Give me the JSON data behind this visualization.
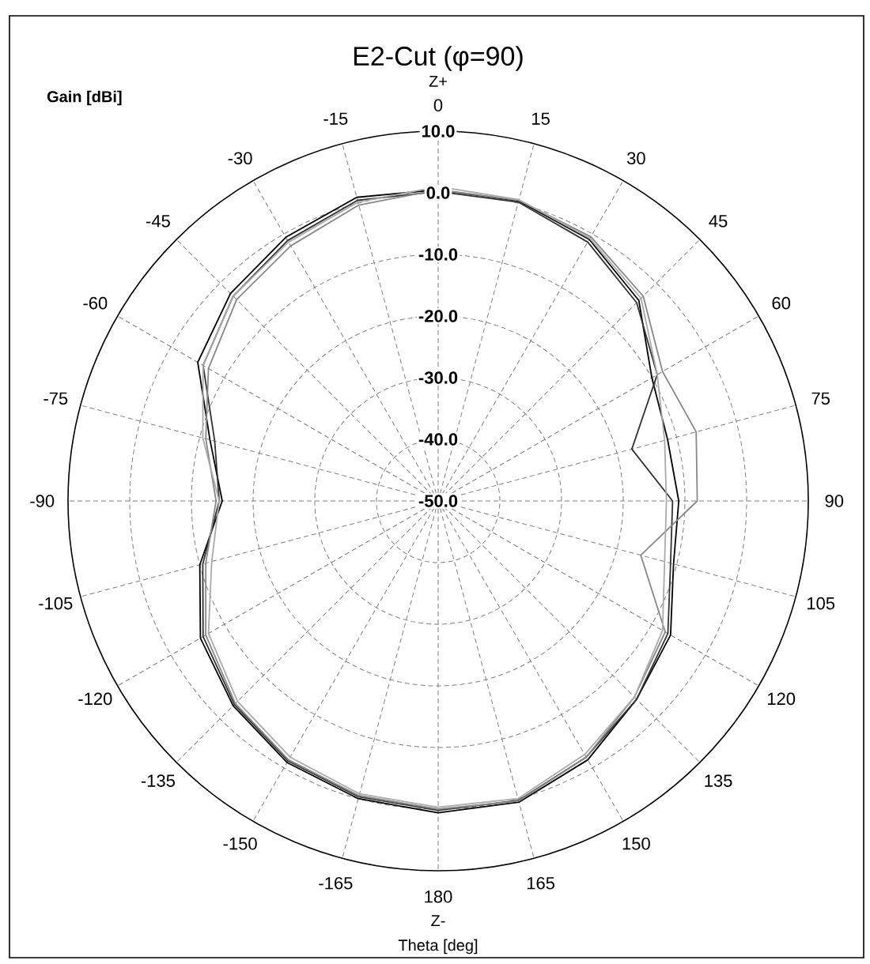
{
  "chart_data": {
    "type": "radar",
    "title": "E2-Cut (φ=90)",
    "xlabel": "Theta [deg]",
    "ylabel": "Gain [dBi]",
    "annotations": [
      "Z+",
      "Z-"
    ],
    "categories": [
      "0",
      "15",
      "30",
      "45",
      "60",
      "75",
      "90",
      "105",
      "120",
      "135",
      "150",
      "165",
      "180",
      "-165",
      "-150",
      "-135",
      "-120",
      "-105",
      "-90",
      "-75",
      "-60",
      "-45",
      "-30",
      "-15"
    ],
    "ylim": [
      -50,
      10
    ],
    "yticks": [
      {
        "value": -50,
        "label": "-50.0"
      },
      {
        "value": -40,
        "label": "-40.0"
      },
      {
        "value": -30,
        "label": "-30.0"
      },
      {
        "value": -20,
        "label": "-20.0"
      },
      {
        "value": -10,
        "label": "-10.0"
      },
      {
        "value": 0,
        "label": "0.0"
      },
      {
        "value": 10,
        "label": "10.0"
      }
    ],
    "grid": true,
    "series": [
      {
        "color": "#000000",
        "values": [
          0.5,
          0.4,
          -1,
          -4,
          -10,
          -11.5,
          -11,
          -10.5,
          -6.5,
          -4.5,
          -1.5,
          0.6,
          0.6,
          0,
          -1,
          -3,
          -5.5,
          -10,
          -15,
          -11.7,
          -5,
          -2.4,
          -0.6,
          1
        ]
      },
      {
        "color": "#333333",
        "values": [
          0.2,
          0.2,
          -1.5,
          -4.5,
          -9,
          -17.5,
          -12,
          -11,
          -7,
          -4.5,
          -2,
          0.3,
          0.2,
          -0.3,
          -1.3,
          -3.3,
          -6,
          -10.5,
          -14.5,
          -12.5,
          -6,
          -3,
          -1.2,
          0.5
        ]
      },
      {
        "color": "#888888",
        "values": [
          0.5,
          0.5,
          -0.5,
          -3,
          -8,
          -6.7,
          -8,
          -16,
          -7.5,
          -5,
          -2,
          0.4,
          0,
          -0.5,
          -1.5,
          -3.5,
          -6.5,
          -11,
          -14,
          -11,
          -7,
          -3.8,
          -2.2,
          -0.3
        ]
      },
      {
        "color": "#aaaaaa",
        "values": [
          1,
          0.6,
          -0.8,
          -3.5,
          -9,
          -12,
          -13,
          -12,
          -8,
          -5,
          -2.5,
          0,
          -0.3,
          -0.8,
          -2,
          -4,
          -7,
          -12,
          -14.5,
          -10.5,
          -6,
          -3,
          -1.5,
          0.2
        ]
      }
    ]
  }
}
